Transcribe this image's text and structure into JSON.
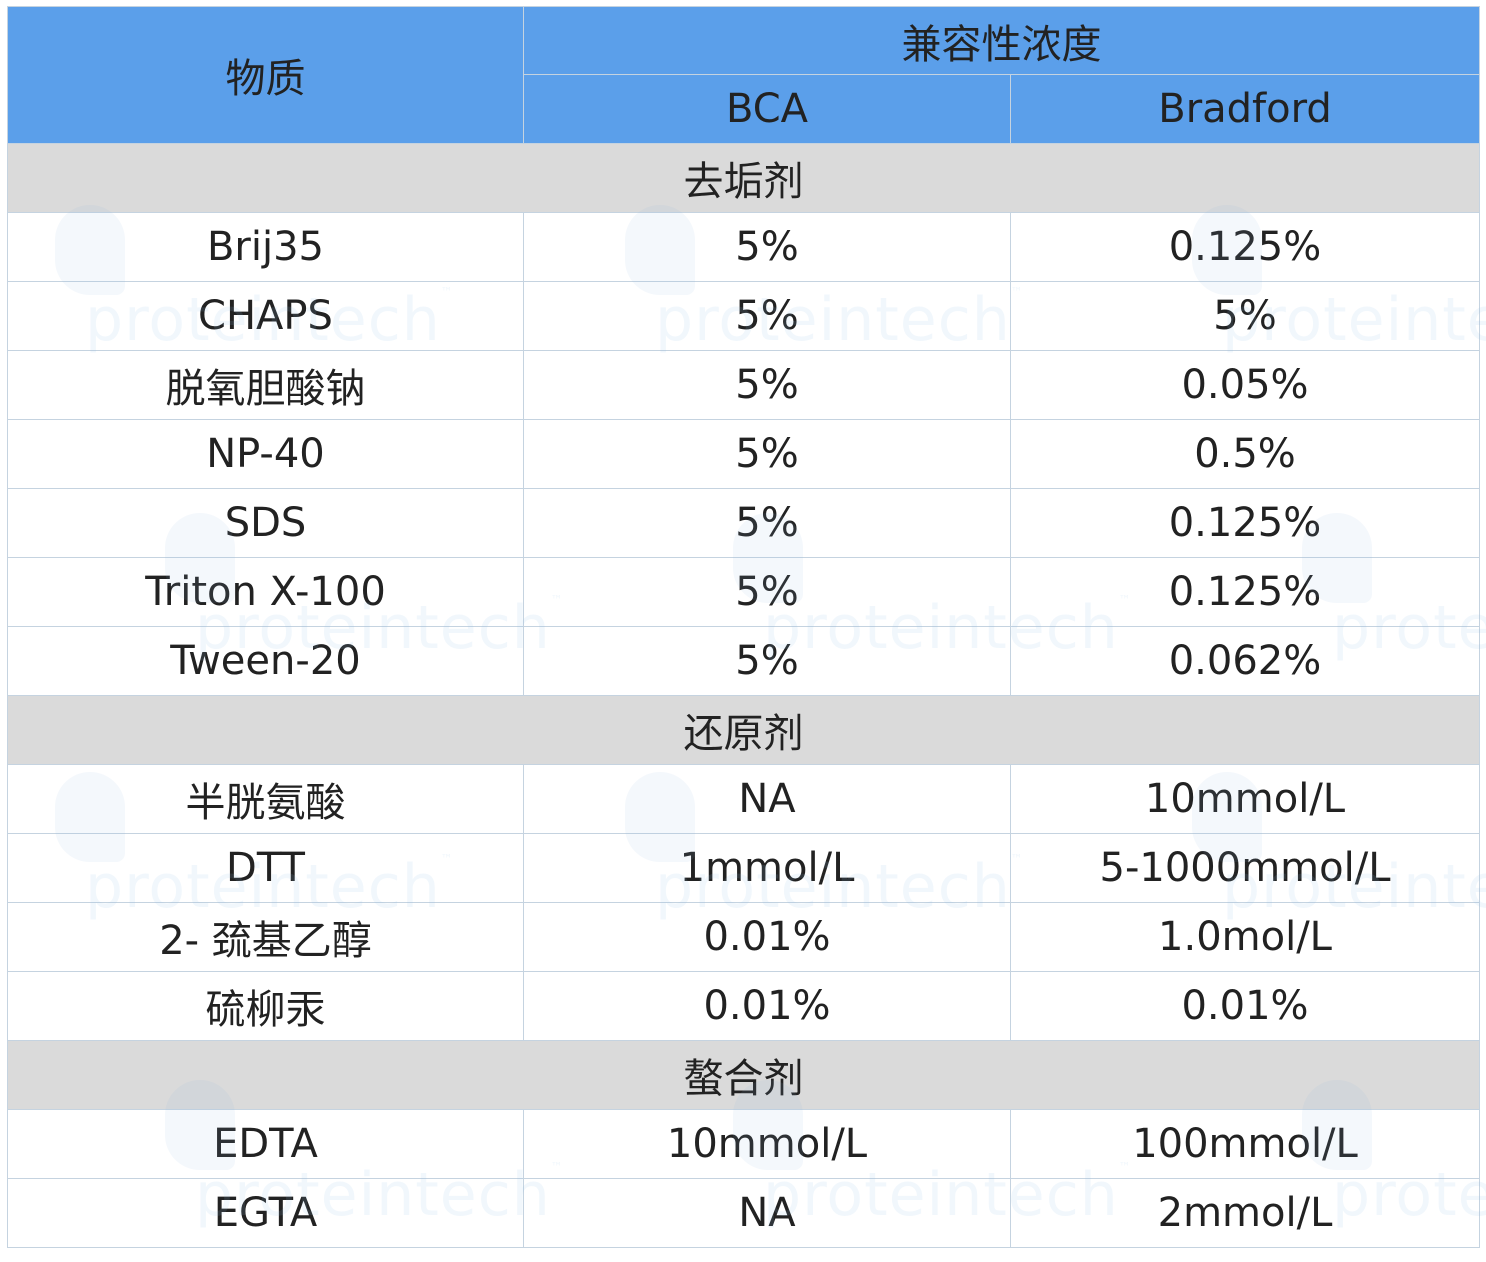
{
  "header": {
    "substance": "物质",
    "compatible_concentration": "兼容性浓度",
    "bca": "BCA",
    "bradford": "Bradford"
  },
  "watermark": {
    "text": "proteintech",
    "tm": "™"
  },
  "sections": [
    {
      "category": "去垢剂",
      "rows": [
        {
          "substance": "Brij35",
          "bca": "5%",
          "bradford": "0.125%"
        },
        {
          "substance": "CHAPS",
          "bca": "5%",
          "bradford": "5%"
        },
        {
          "substance": "脱氧胆酸钠",
          "bca": "5%",
          "bradford": "0.05%"
        },
        {
          "substance": "NP-40",
          "bca": "5%",
          "bradford": "0.5%"
        },
        {
          "substance": "SDS",
          "bca": "5%",
          "bradford": "0.125%"
        },
        {
          "substance": "Triton X-100",
          "bca": "5%",
          "bradford": "0.125%"
        },
        {
          "substance": "Tween-20",
          "bca": "5%",
          "bradford": "0.062%"
        }
      ]
    },
    {
      "category": "还原剂",
      "rows": [
        {
          "substance": "半胱氨酸",
          "bca": "NA",
          "bradford": "10mmol/L"
        },
        {
          "substance": "DTT",
          "bca": "1mmol/L",
          "bradford": "5-1000mmol/L"
        },
        {
          "substance": "2- 巯基乙醇",
          "bca": "0.01%",
          "bradford": "1.0mol/L"
        },
        {
          "substance": "硫柳汞",
          "bca": "0.01%",
          "bradford": "0.01%"
        }
      ]
    },
    {
      "category": "螯合剂",
      "rows": [
        {
          "substance": "EDTA",
          "bca": "10mmol/L",
          "bradford": "100mmol/L"
        },
        {
          "substance": "EGTA",
          "bca": "NA",
          "bradford": "2mmol/L"
        }
      ]
    }
  ]
}
